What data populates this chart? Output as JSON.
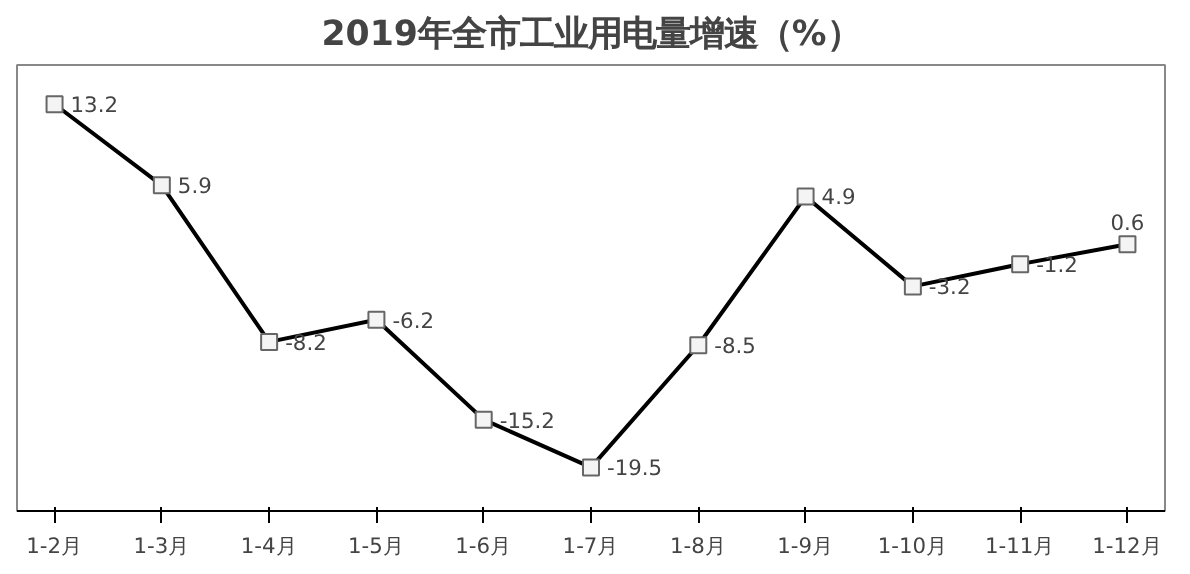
{
  "chart_data": {
    "type": "line",
    "title": "2019年全市工业用电量增速（%）",
    "categories": [
      "1-2月",
      "1-3月",
      "1-4月",
      "1-5月",
      "1-6月",
      "1-7月",
      "1-8月",
      "1-9月",
      "1-10月",
      "1-11月",
      "1-12月"
    ],
    "series": [
      {
        "color": "#000000",
        "values": [
          13.2,
          5.9,
          -8.2,
          -6.2,
          -15.2,
          -19.5,
          -8.5,
          4.9,
          -3.2,
          -1.2,
          0.6
        ]
      }
    ],
    "data_labels": true,
    "marker": "square",
    "line_style": "solid",
    "grid": false
  }
}
